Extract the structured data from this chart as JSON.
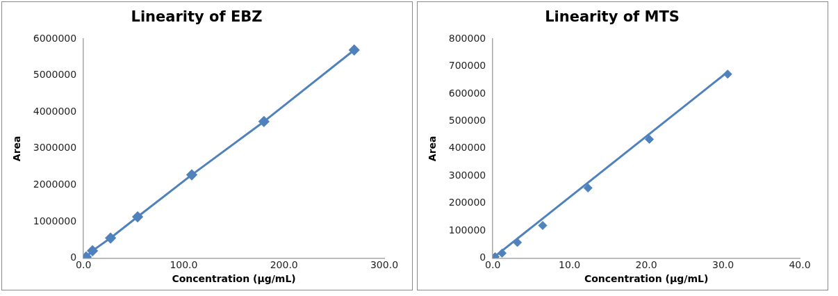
{
  "chart_data": [
    {
      "type": "line",
      "title": "Linearity of EBZ",
      "xlabel": "Concentration (µg/mL)",
      "ylabel": "Area",
      "x": [
        2.7,
        9,
        27,
        54,
        108,
        180,
        270
      ],
      "series": [
        {
          "color": "#4f81bd",
          "values": [
            30000,
            200000,
            550000,
            1130000,
            2280000,
            3740000,
            5700000
          ]
        }
      ],
      "xlim": [
        0,
        300
      ],
      "xticks": [
        {
          "value": 0,
          "label": "0.0"
        },
        {
          "value": 100,
          "label": "100.0"
        },
        {
          "value": 200,
          "label": "200.0"
        },
        {
          "value": 300,
          "label": "300.0"
        }
      ],
      "ylim": [
        0,
        6000000
      ],
      "yticks": [
        0,
        1000000,
        2000000,
        3000000,
        4000000,
        5000000,
        6000000
      ],
      "marker": "diamond"
    },
    {
      "type": "scatter",
      "title": "Linearity of MTS",
      "xlabel": "Concentration (µg/mL)",
      "ylabel": "Area",
      "x": [
        0.3,
        1.2,
        3.2,
        6.5,
        12.4,
        20.4,
        30.6
      ],
      "series": [
        {
          "color": "#4f81bd",
          "values": [
            5000,
            18000,
            57000,
            119000,
            256000,
            434000,
            672000
          ]
        },
        {
          "type": "line",
          "color": "#4f81bd",
          "x": [
            0,
            30.6
          ],
          "values": [
            0,
            680000
          ],
          "marker": "none"
        }
      ],
      "xlim": [
        0,
        40
      ],
      "xticks": [
        {
          "value": 0,
          "label": "0.0"
        },
        {
          "value": 10,
          "label": "10.0"
        },
        {
          "value": 20,
          "label": "20.0"
        },
        {
          "value": 30,
          "label": "30.0"
        },
        {
          "value": 40,
          "label": "40.0"
        }
      ],
      "ylim": [
        0,
        800000
      ],
      "yticks": [
        0,
        100000,
        200000,
        300000,
        400000,
        500000,
        600000,
        700000,
        800000
      ],
      "marker": "diamond"
    }
  ]
}
